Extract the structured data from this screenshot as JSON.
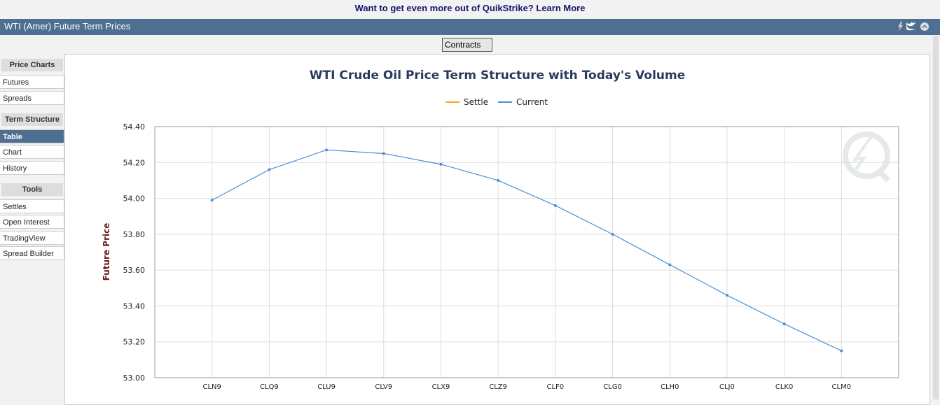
{
  "banner": {
    "text": "Want to get even more out of QuikStrike?",
    "link": "Learn More"
  },
  "header": {
    "title": "WTI (Amer) Future Term Prices"
  },
  "contracts_button": "Contracts",
  "sidebar": [
    {
      "heading": "Price Charts",
      "items": [
        "Futures",
        "Spreads"
      ]
    },
    {
      "heading": "Term Structure",
      "items": [
        "Table",
        "Chart",
        "History"
      ]
    },
    {
      "heading": "Tools",
      "items": [
        "Settles",
        "Open Interest",
        "TradingView",
        "Spread Builder"
      ]
    }
  ],
  "chart_data": {
    "type": "line",
    "title": "WTI Crude Oil Price Term Structure with Today's Volume",
    "ylabel": "Future Price",
    "categories": [
      "CLN9",
      "CLQ9",
      "CLU9",
      "CLV9",
      "CLX9",
      "CLZ9",
      "CLF0",
      "CLG0",
      "CLH0",
      "CLJ0",
      "CLK0",
      "CLM0"
    ],
    "series": [
      {
        "name": "Settle",
        "color": "#f5a623",
        "values": [
          null,
          null,
          null,
          null,
          null,
          null,
          null,
          null,
          null,
          null,
          null,
          null
        ]
      },
      {
        "name": "Current",
        "color": "#4a90d9",
        "values": [
          53.99,
          54.16,
          54.27,
          54.25,
          54.19,
          54.1,
          53.96,
          53.8,
          53.63,
          53.46,
          53.3,
          53.15
        ]
      }
    ],
    "ylim": [
      53.0,
      54.4
    ],
    "yticks": [
      {
        "value": 53.0,
        "label": "53.00"
      },
      {
        "value": 53.2,
        "label": "53.20"
      },
      {
        "value": 53.4,
        "label": "53.40"
      },
      {
        "value": 53.6,
        "label": "53.60"
      },
      {
        "value": 53.8,
        "label": "53.80"
      },
      {
        "value": 54.0,
        "label": "54.00"
      },
      {
        "value": 54.2,
        "label": "54.20"
      },
      {
        "value": 54.4,
        "label": "54.40"
      }
    ],
    "grid": true
  }
}
